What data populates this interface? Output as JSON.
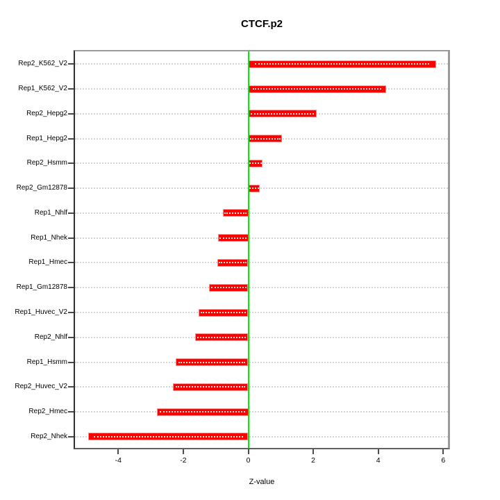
{
  "chart_data": {
    "type": "bar",
    "orientation": "horizontal",
    "title": "CTCF.p2",
    "xlabel": "Z-value",
    "ylabel": "",
    "categories": [
      "Rep2_K562_V2",
      "Rep1_K562_V2",
      "Rep2_Hepg2",
      "Rep1_Hepg2",
      "Rep2_Hsmm",
      "Rep2_Gm12878",
      "Rep1_Nhlf",
      "Rep1_Nhek",
      "Rep1_Hmec",
      "Rep1_Gm12878",
      "Rep1_Huvec_V2",
      "Rep2_Nhlf",
      "Rep1_Hsmm",
      "Rep2_Huvec_V2",
      "Rep2_Hmec",
      "Rep2_Nhek"
    ],
    "values": [
      5.77,
      4.25,
      2.1,
      1.04,
      0.44,
      0.36,
      -0.78,
      -0.93,
      -0.96,
      -1.2,
      -1.53,
      -1.63,
      -2.23,
      -2.32,
      -2.82,
      -4.93
    ],
    "xticks": [
      -4,
      -2,
      0,
      2,
      4,
      6
    ],
    "xtick_labels": [
      "-4",
      "-2",
      "0",
      "2",
      "4",
      "6"
    ],
    "xlim": [
      -5.37,
      6.21
    ],
    "grid": "horizontal-dotted-per-category",
    "legend": "none",
    "style": {
      "bar_color": "#ff0000",
      "bar_edge_color": "#ff8f8f",
      "bar_inner_dots_color": "#ffffff",
      "zero_line_color": "#00ee00",
      "grid_color": "#d4d4d4",
      "box_color": "#9a9a9a",
      "background": "#ffffff",
      "text_color": "#000000"
    }
  }
}
